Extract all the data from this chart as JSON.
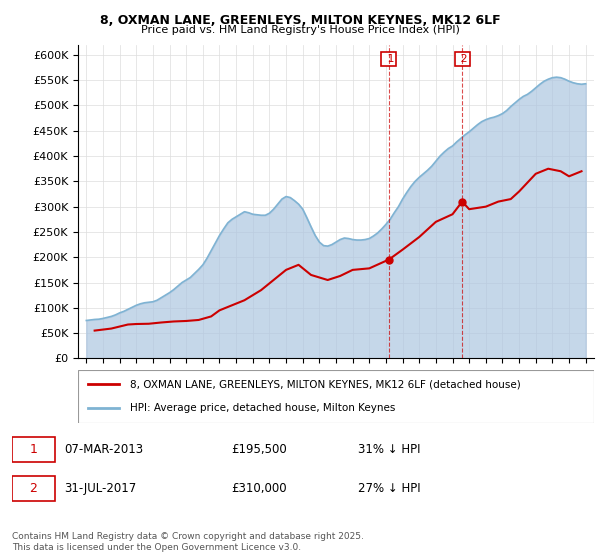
{
  "title1": "8, OXMAN LANE, GREENLEYS, MILTON KEYNES, MK12 6LF",
  "title2": "Price paid vs. HM Land Registry's House Price Index (HPI)",
  "legend_property": "8, OXMAN LANE, GREENLEYS, MILTON KEYNES, MK12 6LF (detached house)",
  "legend_hpi": "HPI: Average price, detached house, Milton Keynes",
  "annotation1_label": "1",
  "annotation1_date": "07-MAR-2013",
  "annotation1_price": "£195,500",
  "annotation1_hpi": "31% ↓ HPI",
  "annotation2_label": "2",
  "annotation2_date": "31-JUL-2017",
  "annotation2_price": "£310,000",
  "annotation2_hpi": "27% ↓ HPI",
  "copyright": "Contains HM Land Registry data © Crown copyright and database right 2025.\nThis data is licensed under the Open Government Licence v3.0.",
  "property_color": "#cc0000",
  "hpi_color": "#adc6e0",
  "hpi_line_color": "#7fb3d3",
  "annotation_color": "#cc0000",
  "ylim": [
    0,
    620000
  ],
  "yticks": [
    0,
    50000,
    100000,
    150000,
    200000,
    250000,
    300000,
    350000,
    400000,
    450000,
    500000,
    550000,
    600000
  ],
  "ytick_labels": [
    "£0",
    "£50K",
    "£100K",
    "£150K",
    "£200K",
    "£250K",
    "£300K",
    "£350K",
    "£400K",
    "£450K",
    "£500K",
    "£550K",
    "£600K"
  ],
  "sale1_year": 2013.18,
  "sale1_price": 195500,
  "sale2_year": 2017.58,
  "sale2_price": 310000,
  "hpi_years": [
    1995,
    1995.25,
    1995.5,
    1995.75,
    1996,
    1996.25,
    1996.5,
    1996.75,
    1997,
    1997.25,
    1997.5,
    1997.75,
    1998,
    1998.25,
    1998.5,
    1998.75,
    1999,
    1999.25,
    1999.5,
    1999.75,
    2000,
    2000.25,
    2000.5,
    2000.75,
    2001,
    2001.25,
    2001.5,
    2001.75,
    2002,
    2002.25,
    2002.5,
    2002.75,
    2003,
    2003.25,
    2003.5,
    2003.75,
    2004,
    2004.25,
    2004.5,
    2004.75,
    2005,
    2005.25,
    2005.5,
    2005.75,
    2006,
    2006.25,
    2006.5,
    2006.75,
    2007,
    2007.25,
    2007.5,
    2007.75,
    2008,
    2008.25,
    2008.5,
    2008.75,
    2009,
    2009.25,
    2009.5,
    2009.75,
    2010,
    2010.25,
    2010.5,
    2010.75,
    2011,
    2011.25,
    2011.5,
    2011.75,
    2012,
    2012.25,
    2012.5,
    2012.75,
    2013,
    2013.25,
    2013.5,
    2013.75,
    2014,
    2014.25,
    2014.5,
    2014.75,
    2015,
    2015.25,
    2015.5,
    2015.75,
    2016,
    2016.25,
    2016.5,
    2016.75,
    2017,
    2017.25,
    2017.5,
    2017.75,
    2018,
    2018.25,
    2018.5,
    2018.75,
    2019,
    2019.25,
    2019.5,
    2019.75,
    2020,
    2020.25,
    2020.5,
    2020.75,
    2021,
    2021.25,
    2021.5,
    2021.75,
    2022,
    2022.25,
    2022.5,
    2022.75,
    2023,
    2023.25,
    2023.5,
    2023.75,
    2024,
    2024.25,
    2024.5,
    2024.75,
    2025
  ],
  "hpi_values": [
    75000,
    76000,
    77000,
    77500,
    79000,
    81000,
    83000,
    86000,
    90000,
    93000,
    97000,
    101000,
    105000,
    108000,
    110000,
    111000,
    112000,
    115000,
    120000,
    125000,
    130000,
    136000,
    143000,
    150000,
    155000,
    160000,
    168000,
    176000,
    185000,
    198000,
    213000,
    228000,
    243000,
    256000,
    268000,
    275000,
    280000,
    285000,
    290000,
    288000,
    285000,
    284000,
    283000,
    283000,
    287000,
    295000,
    305000,
    315000,
    320000,
    318000,
    312000,
    305000,
    295000,
    278000,
    260000,
    243000,
    230000,
    223000,
    222000,
    225000,
    230000,
    235000,
    238000,
    237000,
    235000,
    234000,
    234000,
    235000,
    237000,
    242000,
    248000,
    256000,
    265000,
    275000,
    288000,
    300000,
    315000,
    328000,
    340000,
    350000,
    358000,
    365000,
    372000,
    380000,
    390000,
    400000,
    408000,
    415000,
    420000,
    428000,
    435000,
    442000,
    448000,
    455000,
    462000,
    468000,
    472000,
    475000,
    477000,
    480000,
    484000,
    490000,
    498000,
    505000,
    512000,
    518000,
    522000,
    528000,
    535000,
    542000,
    548000,
    552000,
    555000,
    556000,
    555000,
    552000,
    548000,
    545000,
    543000,
    542000,
    543000
  ],
  "property_years": [
    1995.5,
    1996.0,
    1996.5,
    1997.0,
    1997.5,
    1998.0,
    1998.75,
    1999.5,
    2000.25,
    2001.0,
    2001.75,
    2002.5,
    2003.0,
    2003.75,
    2004.5,
    2005.5,
    2006.25,
    2007.0,
    2007.75,
    2008.5,
    2009.5,
    2010.25,
    2011.0,
    2012.0,
    2013.18,
    2014.0,
    2015.0,
    2016.0,
    2017.0,
    2017.58,
    2018.0,
    2019.0,
    2019.75,
    2020.5,
    2021.0,
    2022.0,
    2022.75,
    2023.5,
    2024.0,
    2024.75
  ],
  "property_values": [
    55000,
    57000,
    59000,
    63000,
    67000,
    68000,
    68500,
    71000,
    73000,
    74000,
    76000,
    83000,
    95000,
    105000,
    115000,
    135000,
    155000,
    175000,
    185000,
    165000,
    155000,
    163000,
    175000,
    178000,
    195500,
    215000,
    240000,
    270000,
    285000,
    310000,
    295000,
    300000,
    310000,
    315000,
    330000,
    365000,
    375000,
    370000,
    360000,
    370000
  ]
}
